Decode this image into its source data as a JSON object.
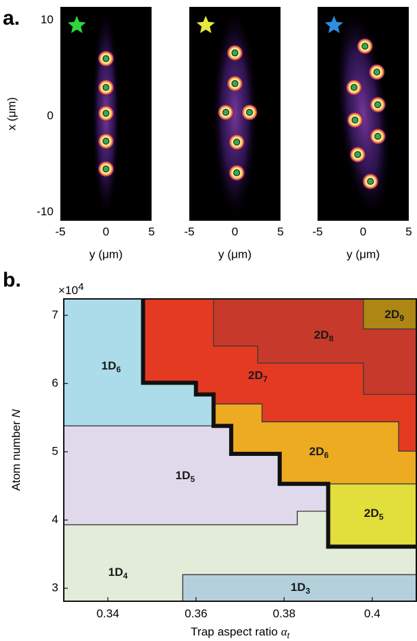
{
  "chart_data": [
    {
      "type": "scatter",
      "panel_label": "a.",
      "star_color": "#2ed43c",
      "x_label": "y (μm)",
      "y_label": "x (μm)",
      "xlim": [
        -5,
        5
      ],
      "ylim": [
        -10.9,
        11.4
      ],
      "xticks": [
        -5,
        0,
        5
      ],
      "yticks": [
        -10,
        0,
        10
      ],
      "color": "#3aa84a",
      "x": [
        0,
        0,
        0,
        0,
        0
      ],
      "y": [
        6,
        3,
        0.3,
        -2.6,
        -5.5
      ]
    },
    {
      "type": "scatter",
      "star_color": "#e6e83c",
      "x_label": "y (μm)",
      "xlim": [
        -5,
        5
      ],
      "ylim": [
        -10.9,
        11.4
      ],
      "xticks": [
        -5,
        0,
        5
      ],
      "color": "#3aa84a",
      "x": [
        0,
        0,
        -1,
        1.6,
        0.2,
        0.2
      ],
      "y": [
        6.6,
        3.4,
        0.4,
        0.4,
        -2.7,
        -5.9
      ]
    },
    {
      "type": "scatter",
      "star_color": "#2f8de0",
      "x_label": "y (μm)",
      "xlim": [
        -5,
        5
      ],
      "ylim": [
        -10.9,
        11.4
      ],
      "xticks": [
        -5,
        0,
        5
      ],
      "color": "#3aa84a",
      "x": [
        0.2,
        1.5,
        -1,
        1.6,
        -0.9,
        1.6,
        -0.6,
        0.8
      ],
      "y": [
        7.3,
        4.6,
        3,
        1.2,
        -0.4,
        -2.1,
        -4,
        -6.8
      ]
    },
    {
      "type": "phase",
      "panel_label": "b.",
      "x_label": "Trap aspect ratio ",
      "x_label_symbol": "α",
      "x_label_subscript": "t",
      "y_label": "Atom number ",
      "y_label_symbol": "N",
      "y_offset_label": "×10",
      "y_offset_exponent": "4",
      "xlim": [
        0.33,
        0.41
      ],
      "ylim": [
        2.81,
        7.24
      ],
      "xticks": [
        0.34,
        0.36,
        0.38,
        0.4
      ],
      "yticks": [
        3,
        4,
        5,
        6,
        7
      ],
      "regions": [
        {
          "name": "1D",
          "sub": "6",
          "color": "#acdcea",
          "x": [
            0.33,
            0.348,
            0.348,
            0.36,
            0.36,
            0.364,
            0.364,
            0.33
          ],
          "y": [
            7.24,
            7.24,
            6.01,
            6.01,
            5.84,
            5.84,
            5.38,
            5.38
          ]
        },
        {
          "name": "1D",
          "sub": "5",
          "color": "#e0d9ec",
          "x": [
            0.33,
            0.368,
            0.368,
            0.379,
            0.379,
            0.39,
            0.39,
            0.383,
            0.383,
            0.33
          ],
          "y": [
            5.38,
            5.38,
            4.97,
            4.97,
            4.53,
            4.53,
            4.13,
            4.13,
            3.93,
            3.93
          ]
        },
        {
          "name": "1D",
          "sub": "4",
          "color": "#e2ecd9",
          "x": [
            0.33,
            0.383,
            0.383,
            0.39,
            0.39,
            0.41,
            0.41,
            0.357,
            0.357,
            0.33
          ],
          "y": [
            3.93,
            3.93,
            4.13,
            4.13,
            3.61,
            3.61,
            3.2,
            3.2,
            2.81,
            2.81
          ]
        },
        {
          "name": "1D",
          "sub": "3",
          "color": "#b4d0db",
          "x": [
            0.357,
            0.41,
            0.41,
            0.357
          ],
          "y": [
            3.2,
            3.2,
            2.81,
            2.81
          ]
        },
        {
          "name": "2D",
          "sub": "5",
          "color": "#e2de3b",
          "x": [
            0.39,
            0.41,
            0.41,
            0.39
          ],
          "y": [
            4.53,
            4.53,
            3.61,
            3.61
          ]
        },
        {
          "name": "2D",
          "sub": "6",
          "color": "#edab22",
          "x": [
            0.364,
            0.375,
            0.375,
            0.406,
            0.406,
            0.41,
            0.41,
            0.379,
            0.379,
            0.368,
            0.368,
            0.364
          ],
          "y": [
            5.7,
            5.7,
            5.44,
            5.44,
            5.01,
            5.01,
            4.53,
            4.53,
            4.97,
            4.97,
            5.38,
            5.38
          ]
        },
        {
          "name": "2D",
          "sub": "7",
          "color": "#e53a22",
          "x": [
            0.348,
            0.41,
            0.41,
            0.406,
            0.406,
            0.375,
            0.375,
            0.364,
            0.364,
            0.36,
            0.36,
            0.348
          ],
          "y": [
            7.24,
            7.24,
            5.01,
            5.01,
            5.44,
            5.44,
            5.7,
            5.7,
            5.84,
            5.84,
            6.01,
            6.01
          ]
        },
        {
          "name": "2D",
          "sub": "8",
          "color": "#c7392b",
          "x": [
            0.364,
            0.41,
            0.41,
            0.398,
            0.398,
            0.374,
            0.374,
            0.364
          ],
          "y": [
            7.24,
            7.24,
            5.84,
            5.84,
            6.3,
            6.3,
            6.55,
            6.55
          ]
        },
        {
          "name": "2D",
          "sub": "9",
          "color": "#ae8614",
          "x": [
            0.398,
            0.41,
            0.41,
            0.398
          ],
          "y": [
            7.24,
            7.24,
            6.8,
            6.8
          ]
        }
      ],
      "phase_boundary": {
        "x": [
          0.348,
          0.348,
          0.36,
          0.36,
          0.364,
          0.364,
          0.368,
          0.368,
          0.379,
          0.379,
          0.39,
          0.39,
          0.41
        ],
        "y": [
          7.24,
          6.01,
          6.01,
          5.84,
          5.84,
          5.38,
          5.38,
          4.97,
          4.97,
          4.53,
          4.53,
          3.61,
          3.61
        ]
      }
    }
  ]
}
